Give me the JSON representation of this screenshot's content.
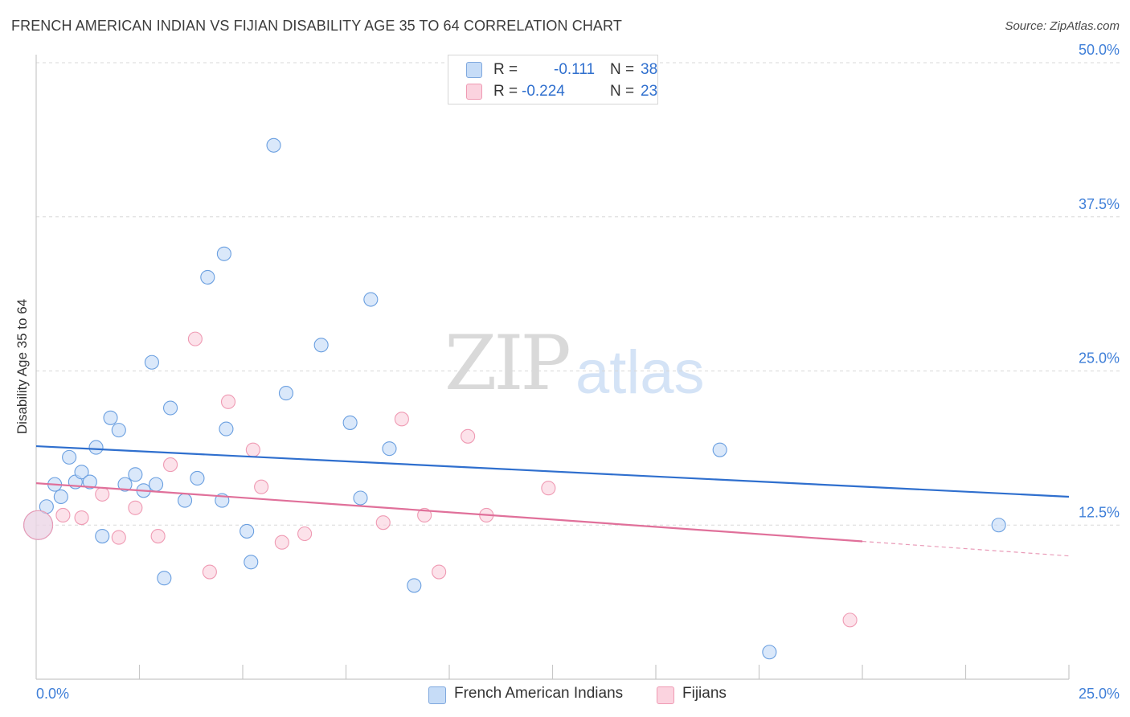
{
  "title": "FRENCH AMERICAN INDIAN VS FIJIAN DISABILITY AGE 35 TO 64 CORRELATION CHART",
  "source": "Source: ZipAtlas.com",
  "watermark": {
    "zip": "ZIP",
    "atlas": "atlas"
  },
  "legend_top": {
    "rows": [
      {
        "r_label": "R =",
        "r_value": "-0.111",
        "n_label": "N =",
        "n_value": "38",
        "color": "#c6dcf7"
      },
      {
        "r_label": "R =",
        "r_value": "-0.224",
        "n_label": "N =",
        "n_value": "23",
        "color": "#fbd3df"
      }
    ]
  },
  "legend_bottom": [
    {
      "label": "French American Indians",
      "color": "#c6dcf7"
    },
    {
      "label": "Fijians",
      "color": "#fbd3df"
    }
  ],
  "chart_data": {
    "type": "scatter",
    "title": "FRENCH AMERICAN INDIAN VS FIJIAN DISABILITY AGE 35 TO 64 CORRELATION CHART",
    "xlabel": "",
    "ylabel": "Disability Age 35 to 64",
    "xlim": [
      0,
      25
    ],
    "ylim": [
      0,
      50
    ],
    "x_tick_labels": [
      "0.0%",
      "25.0%"
    ],
    "y_ticks": [
      12.5,
      25.0,
      37.5,
      50.0
    ],
    "y_tick_labels": [
      "12.5%",
      "25.0%",
      "37.5%",
      "50.0%"
    ],
    "grid": true,
    "series": [
      {
        "name": "French American Indians",
        "color": "#6a9fe0",
        "fill": "#c6dcf7",
        "points": [
          [
            0.05,
            12.5
          ],
          [
            0.25,
            14.0
          ],
          [
            0.45,
            15.8
          ],
          [
            0.6,
            14.8
          ],
          [
            0.8,
            18.0
          ],
          [
            0.95,
            16.0
          ],
          [
            1.1,
            16.8
          ],
          [
            1.3,
            16.0
          ],
          [
            1.45,
            18.8
          ],
          [
            1.6,
            11.6
          ],
          [
            1.8,
            21.2
          ],
          [
            2.0,
            20.2
          ],
          [
            2.15,
            15.8
          ],
          [
            2.4,
            16.6
          ],
          [
            2.6,
            15.3
          ],
          [
            2.8,
            25.7
          ],
          [
            2.9,
            15.8
          ],
          [
            3.1,
            8.2
          ],
          [
            3.25,
            22.0
          ],
          [
            3.6,
            14.5
          ],
          [
            3.9,
            16.3
          ],
          [
            4.15,
            32.6
          ],
          [
            4.55,
            34.5
          ],
          [
            4.5,
            14.5
          ],
          [
            4.6,
            20.3
          ],
          [
            5.1,
            12.0
          ],
          [
            5.2,
            9.5
          ],
          [
            5.75,
            43.3
          ],
          [
            6.05,
            23.2
          ],
          [
            6.9,
            27.1
          ],
          [
            7.6,
            20.8
          ],
          [
            7.85,
            14.7
          ],
          [
            8.1,
            30.8
          ],
          [
            8.55,
            18.7
          ],
          [
            9.15,
            7.6
          ],
          [
            16.55,
            18.6
          ],
          [
            17.75,
            2.2
          ],
          [
            23.3,
            12.5
          ]
        ]
      },
      {
        "name": "Fijians",
        "color": "#ef9ab3",
        "fill": "#fbd3df",
        "points": [
          [
            0.65,
            13.3
          ],
          [
            1.1,
            13.1
          ],
          [
            1.6,
            15.0
          ],
          [
            2.0,
            11.5
          ],
          [
            2.4,
            13.9
          ],
          [
            2.95,
            11.6
          ],
          [
            3.25,
            17.4
          ],
          [
            3.85,
            27.6
          ],
          [
            4.2,
            8.7
          ],
          [
            4.65,
            22.5
          ],
          [
            5.25,
            18.6
          ],
          [
            5.45,
            15.6
          ],
          [
            5.95,
            11.1
          ],
          [
            6.5,
            11.8
          ],
          [
            8.4,
            12.7
          ],
          [
            8.85,
            21.1
          ],
          [
            9.4,
            13.3
          ],
          [
            9.75,
            8.7
          ],
          [
            10.45,
            19.7
          ],
          [
            10.9,
            13.3
          ],
          [
            12.4,
            15.5
          ],
          [
            19.7,
            4.8
          ],
          [
            0.05,
            12.5
          ]
        ]
      }
    ],
    "trend_lines": [
      {
        "series": "French American Indians",
        "color": "#2f6fce",
        "x": [
          0,
          25
        ],
        "y": [
          18.9,
          14.8
        ],
        "dashed_from": null
      },
      {
        "series": "Fijians",
        "color": "#e0709a",
        "x": [
          0,
          25
        ],
        "y": [
          15.9,
          10.0
        ],
        "dashed_from": 20.0
      }
    ]
  }
}
